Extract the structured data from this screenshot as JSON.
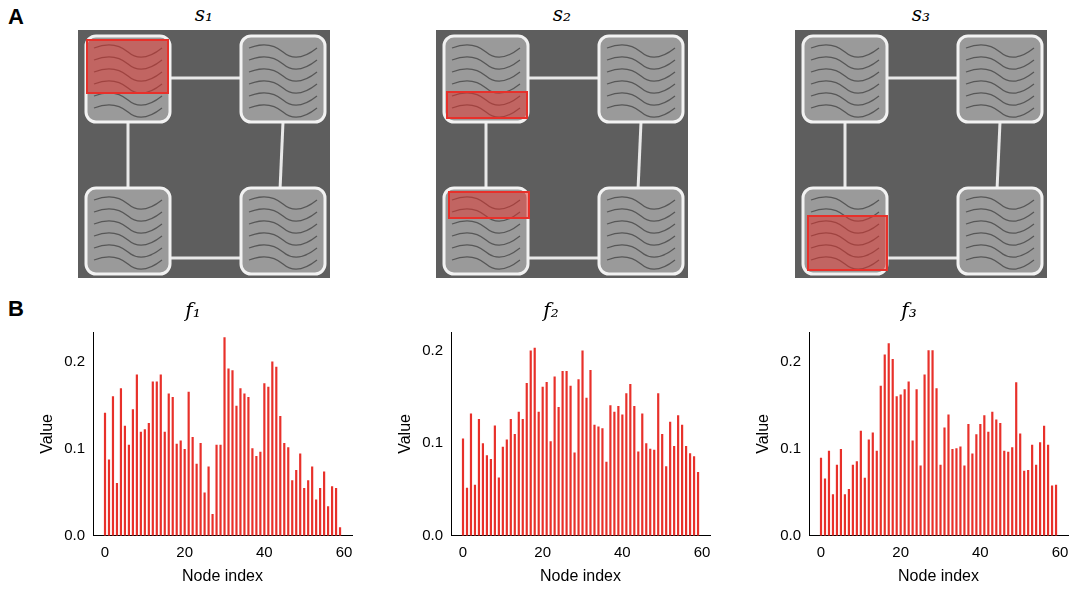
{
  "panel_labels": [
    "A",
    "B"
  ],
  "diagram": {
    "titles": [
      "s₁",
      "s₂",
      "s₃"
    ],
    "color": "#e8302a"
  },
  "chart_data": [
    {
      "type": "bar",
      "title": "f₁",
      "x_label": "Node index",
      "y_label": "Value",
      "x": [
        0,
        1,
        2,
        3,
        4,
        5,
        6,
        7,
        8,
        9,
        10,
        11,
        12,
        13,
        14,
        15,
        16,
        17,
        18,
        19,
        20,
        21,
        22,
        23,
        24,
        25,
        26,
        27,
        28,
        29,
        30,
        31,
        32,
        33,
        34,
        35,
        36,
        37,
        38,
        39,
        40,
        41,
        42,
        43,
        44,
        45,
        46,
        47,
        48,
        49,
        50,
        51,
        52,
        53,
        54,
        55,
        56,
        57,
        58,
        59
      ],
      "values": [
        0.142,
        0.088,
        0.161,
        0.061,
        0.17,
        0.127,
        0.105,
        0.146,
        0.186,
        0.12,
        0.123,
        0.13,
        0.178,
        0.178,
        0.186,
        0.12,
        0.164,
        0.16,
        0.106,
        0.11,
        0.1,
        0.166,
        0.114,
        0.083,
        0.107,
        0.05,
        0.08,
        0.025,
        0.105,
        0.105,
        0.229,
        0.193,
        0.191,
        0.15,
        0.17,
        0.164,
        0.16,
        0.101,
        0.092,
        0.097,
        0.176,
        0.172,
        0.201,
        0.195,
        0.138,
        0.107,
        0.102,
        0.064,
        0.076,
        0.095,
        0.055,
        0.064,
        0.08,
        0.042,
        0.055,
        0.074,
        0.034,
        0.057,
        0.055,
        0.01
      ],
      "color": "#e8302a",
      "xlim": [
        -3,
        62
      ],
      "xticks": [
        0,
        20,
        40,
        60
      ],
      "ylim": [
        0,
        0.235
      ],
      "yticks": [
        {
          "value": 0,
          "label": "0.0"
        },
        {
          "value": 0.1,
          "label": "0.1"
        },
        {
          "value": 0.2,
          "label": "0.2"
        }
      ],
      "grid": false
    },
    {
      "type": "bar",
      "title": "f₂",
      "x_label": "Node index",
      "y_label": "Value",
      "x": [
        0,
        1,
        2,
        3,
        4,
        5,
        6,
        7,
        8,
        9,
        10,
        11,
        12,
        13,
        14,
        15,
        16,
        17,
        18,
        19,
        20,
        21,
        22,
        23,
        24,
        25,
        26,
        27,
        28,
        29,
        30,
        31,
        32,
        33,
        34,
        35,
        36,
        37,
        38,
        39,
        40,
        41,
        42,
        43,
        44,
        45,
        46,
        47,
        48,
        49,
        50,
        51,
        52,
        53,
        54,
        55,
        56,
        57,
        58,
        59
      ],
      "values": [
        0.105,
        0.052,
        0.132,
        0.055,
        0.126,
        0.1,
        0.087,
        0.083,
        0.119,
        0.063,
        0.096,
        0.104,
        0.126,
        0.11,
        0.134,
        0.126,
        0.165,
        0.2,
        0.203,
        0.134,
        0.161,
        0.166,
        0.102,
        0.172,
        0.139,
        0.178,
        0.178,
        0.162,
        0.09,
        0.169,
        0.2,
        0.149,
        0.179,
        0.12,
        0.118,
        0.116,
        0.08,
        0.141,
        0.134,
        0.14,
        0.131,
        0.154,
        0.164,
        0.14,
        0.091,
        0.132,
        0.1,
        0.094,
        0.093,
        0.154,
        0.11,
        0.075,
        0.123,
        0.097,
        0.13,
        0.12,
        0.097,
        0.089,
        0.086,
        0.069
      ],
      "color": "#e8302a",
      "xlim": [
        -3,
        62
      ],
      "xticks": [
        0,
        20,
        40,
        60
      ],
      "ylim": [
        0,
        0.22
      ],
      "yticks": [
        {
          "value": 0,
          "label": "0.0"
        },
        {
          "value": 0.1,
          "label": "0.1"
        },
        {
          "value": 0.2,
          "label": "0.2"
        }
      ],
      "grid": false
    },
    {
      "type": "bar",
      "title": "f₃",
      "x_label": "Node index",
      "y_label": "Value",
      "x": [
        0,
        1,
        2,
        3,
        4,
        5,
        6,
        7,
        8,
        9,
        10,
        11,
        12,
        13,
        14,
        15,
        16,
        17,
        18,
        19,
        20,
        21,
        22,
        23,
        24,
        25,
        26,
        27,
        28,
        29,
        30,
        31,
        32,
        33,
        34,
        35,
        36,
        37,
        38,
        39,
        40,
        41,
        42,
        43,
        44,
        45,
        46,
        47,
        48,
        49,
        50,
        51,
        52,
        53,
        54,
        55,
        56,
        57,
        58,
        59
      ],
      "values": [
        0.09,
        0.066,
        0.098,
        0.048,
        0.082,
        0.1,
        0.048,
        0.054,
        0.082,
        0.086,
        0.121,
        0.067,
        0.111,
        0.119,
        0.098,
        0.173,
        0.209,
        0.222,
        0.204,
        0.161,
        0.163,
        0.169,
        0.178,
        0.11,
        0.169,
        0.081,
        0.186,
        0.214,
        0.214,
        0.17,
        0.082,
        0.125,
        0.14,
        0.1,
        0.101,
        0.103,
        0.081,
        0.129,
        0.095,
        0.117,
        0.129,
        0.139,
        0.12,
        0.143,
        0.134,
        0.13,
        0.098,
        0.097,
        0.102,
        0.177,
        0.118,
        0.075,
        0.076,
        0.105,
        0.082,
        0.108,
        0.127,
        0.105,
        0.058,
        0.059
      ],
      "color": "#e8302a",
      "xlim": [
        -3,
        62
      ],
      "xticks": [
        0,
        20,
        40,
        60
      ],
      "ylim": [
        0,
        0.235
      ],
      "yticks": [
        {
          "value": 0,
          "label": "0.0"
        },
        {
          "value": 0.1,
          "label": "0.1"
        },
        {
          "value": 0.2,
          "label": "0.2"
        }
      ],
      "grid": false
    }
  ]
}
